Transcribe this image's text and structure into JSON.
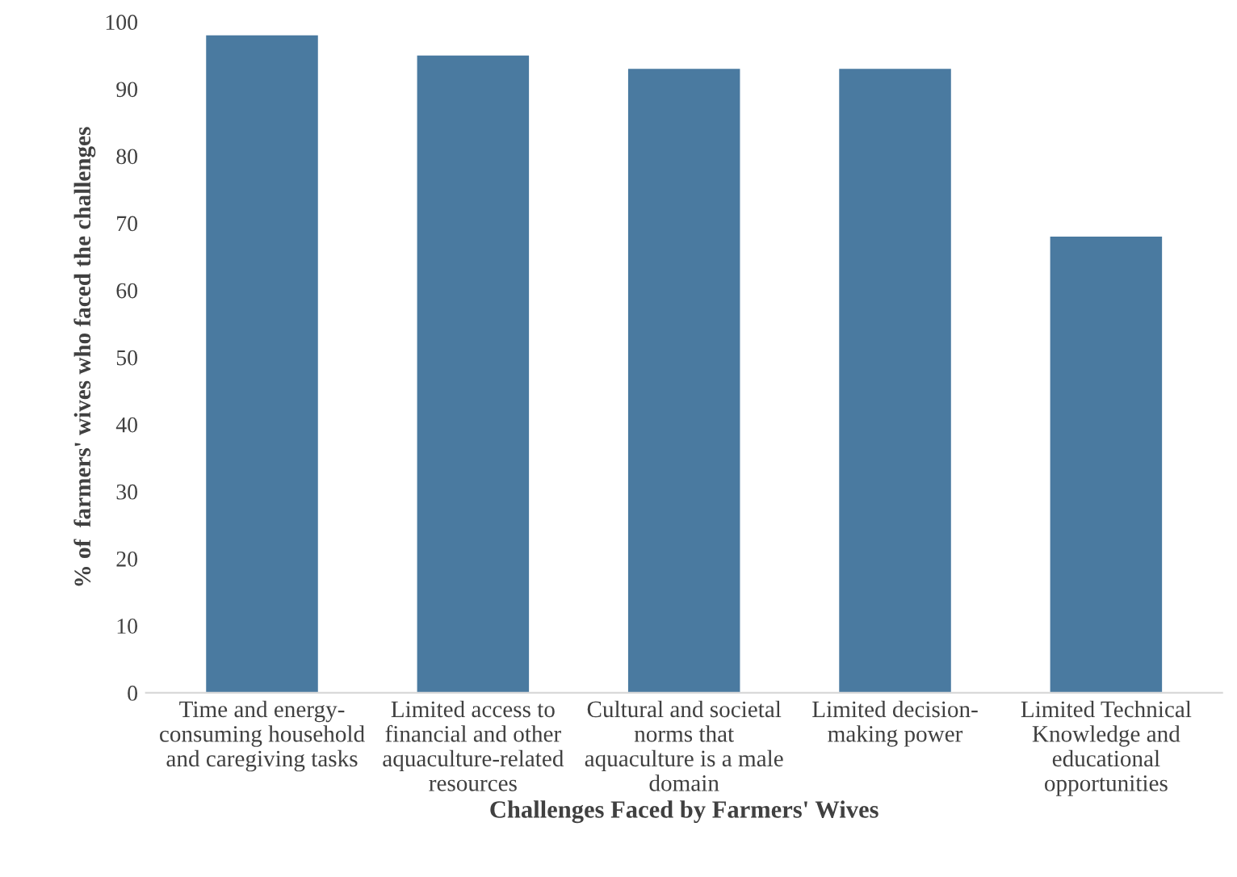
{
  "chart_data": {
    "type": "bar",
    "xlabel": "Challenges Faced by Farmers' Wives",
    "ylabel": "% of  farmers' wives who faced the challenges",
    "categories": [
      "Time and energy-consuming household and caregiving tasks",
      "Limited access to financial and other aquaculture-related resources",
      "Cultural and societal norms that aquaculture is a male domain",
      "Limited decision-making power",
      "Limited Technical Knowledge and educational opportunities"
    ],
    "values": [
      98,
      95,
      93,
      93,
      68
    ],
    "color": "#4a7aa0",
    "ylim": [
      0,
      100
    ],
    "yticks": [
      0,
      10,
      20,
      30,
      40,
      50,
      60,
      70,
      80,
      90,
      100
    ],
    "grid": false,
    "legend": false
  }
}
